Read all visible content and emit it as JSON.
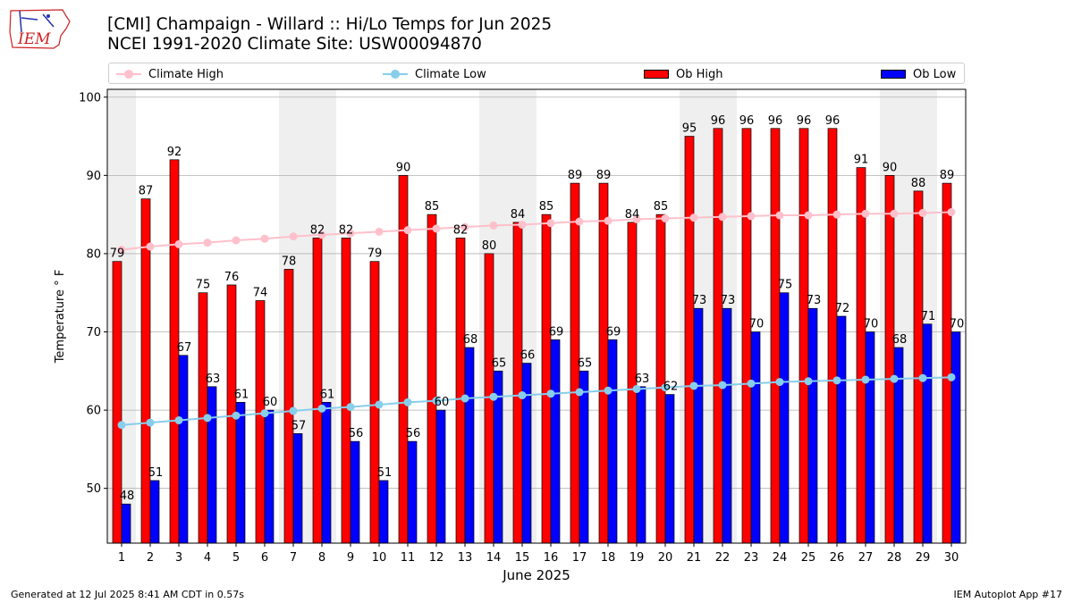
{
  "header": {
    "logo_text": "IEM",
    "title_line1": "[CMI] Champaign - Willard :: Hi/Lo Temps for Jun 2025",
    "title_line2": "NCEI 1991-2020 Climate Site: USW00094870"
  },
  "footer": {
    "generated": "Generated at 12 Jul 2025 8:41 AM CDT in 0.57s",
    "app": "IEM Autoplot App #17"
  },
  "legend": {
    "climate_high": "Climate High",
    "climate_low": "Climate Low",
    "ob_high": "Ob High",
    "ob_low": "Ob Low"
  },
  "colors": {
    "ob_high": "#ff0000",
    "ob_low": "#0000ff",
    "climate_high": "#ffc0cb",
    "climate_low": "#87ceeb",
    "weekend_shade": "#efefef",
    "grid": "#b0b0b0",
    "logo_red": "#cc2222",
    "logo_blue": "#2233aa"
  },
  "chart_data": {
    "type": "bar",
    "title": "[CMI] Champaign - Willard :: Hi/Lo Temps for Jun 2025",
    "subtitle": "NCEI 1991-2020 Climate Site: USW00094870",
    "xlabel": "June 2025",
    "ylabel": "Temperature ° F",
    "ylim": [
      43,
      101
    ],
    "yticks": [
      50,
      60,
      70,
      80,
      90,
      100
    ],
    "grid": "horizontal",
    "legend_position": "top",
    "categories": [
      1,
      2,
      3,
      4,
      5,
      6,
      7,
      8,
      9,
      10,
      11,
      12,
      13,
      14,
      15,
      16,
      17,
      18,
      19,
      20,
      21,
      22,
      23,
      24,
      25,
      26,
      27,
      28,
      29,
      30
    ],
    "shaded_days": [
      1,
      7,
      8,
      14,
      15,
      21,
      22,
      28,
      29
    ],
    "series": [
      {
        "name": "Ob High",
        "kind": "bar",
        "values": [
          79,
          87,
          92,
          75,
          76,
          74,
          78,
          82,
          82,
          79,
          90,
          85,
          82,
          80,
          84,
          85,
          89,
          89,
          84,
          85,
          95,
          96,
          96,
          96,
          96,
          96,
          91,
          90,
          88,
          89
        ]
      },
      {
        "name": "Ob Low",
        "kind": "bar",
        "values": [
          48,
          51,
          67,
          63,
          61,
          60,
          57,
          61,
          56,
          51,
          56,
          60,
          68,
          65,
          66,
          69,
          65,
          69,
          63,
          62,
          73,
          73,
          70,
          75,
          73,
          72,
          70,
          68,
          71,
          70
        ]
      },
      {
        "name": "Climate High",
        "kind": "line",
        "values": [
          80.5,
          80.9,
          81.2,
          81.4,
          81.7,
          81.9,
          82.2,
          82.4,
          82.6,
          82.8,
          83.0,
          83.2,
          83.4,
          83.6,
          83.7,
          83.9,
          84.1,
          84.2,
          84.4,
          84.5,
          84.6,
          84.7,
          84.8,
          84.9,
          84.9,
          85.0,
          85.1,
          85.1,
          85.2,
          85.3
        ]
      },
      {
        "name": "Climate Low",
        "kind": "line",
        "values": [
          58.1,
          58.4,
          58.7,
          59.0,
          59.3,
          59.6,
          59.9,
          60.2,
          60.4,
          60.7,
          61.0,
          61.2,
          61.5,
          61.7,
          61.9,
          62.1,
          62.3,
          62.5,
          62.7,
          62.9,
          63.1,
          63.2,
          63.4,
          63.6,
          63.7,
          63.8,
          63.9,
          64.0,
          64.1,
          64.2
        ]
      }
    ]
  }
}
